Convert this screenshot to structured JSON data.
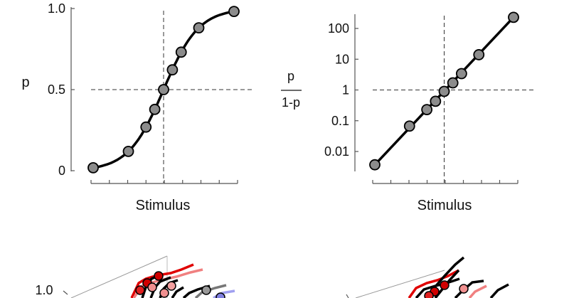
{
  "chart_data": [
    {
      "type": "line",
      "xlabel": "Stimulus",
      "ylabel": "p",
      "ylim": [
        0,
        1
      ],
      "y_ticks": [
        {
          "value": 0,
          "label": "0"
        },
        {
          "value": 0.5,
          "label": "0.5"
        },
        {
          "value": 1,
          "label": "1.0"
        }
      ],
      "x_tick_count": 9,
      "reference_lines": {
        "x": 0,
        "y": 0.5
      },
      "x": [
        -4,
        -2,
        -1,
        -0.5,
        0,
        0.5,
        1,
        2,
        4
      ],
      "points": [
        0.018,
        0.119,
        0.269,
        0.378,
        0.5,
        0.622,
        0.731,
        0.881,
        0.982
      ]
    },
    {
      "type": "line",
      "scale": "log",
      "xlabel": "Stimulus",
      "ylabel_top": "p",
      "ylabel_bottom": "1-p",
      "ylim": [
        0.002,
        200
      ],
      "y_ticks": [
        {
          "value": 0.01,
          "label": "0.01"
        },
        {
          "value": 0.1,
          "label": "0.1"
        },
        {
          "value": 1,
          "label": "1"
        },
        {
          "value": 10,
          "label": "10"
        },
        {
          "value": 100,
          "label": "100"
        }
      ],
      "x_tick_count": 9,
      "reference_lines": {
        "x": 0,
        "y": 1
      },
      "x": [
        -4,
        -2,
        -1,
        -0.5,
        0,
        0.5,
        1,
        2,
        4
      ],
      "points": [
        0.0037,
        0.067,
        0.23,
        0.43,
        0.9,
        1.7,
        3.4,
        14,
        230
      ]
    }
  ],
  "lower_panels": {
    "y_label": "1.0"
  }
}
